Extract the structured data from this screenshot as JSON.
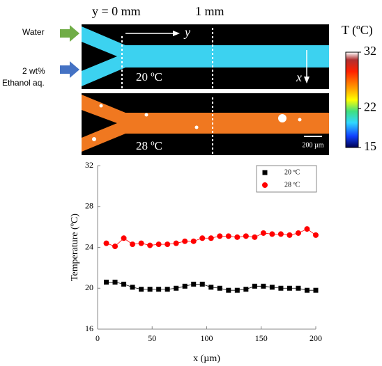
{
  "figure": {
    "position_labels": [
      "y = 0 mm",
      "1 mm"
    ],
    "inlet_labels": [
      "Water",
      "2 wt%",
      "Ethanol aq."
    ],
    "axis_arrows": [
      "y",
      "x"
    ],
    "panel_labels": [
      "20 ºC",
      "28 ºC"
    ],
    "scale_bar": "200 µm"
  },
  "colorbar": {
    "title": "T (ºC)",
    "lim": [
      15,
      32
    ],
    "ticks": [
      15,
      22,
      32
    ]
  },
  "chart_data": {
    "type": "line",
    "xlabel": "x (µm)",
    "ylabel": "Temperature (ºC)",
    "x": [
      8,
      16,
      24,
      32,
      40,
      48,
      56,
      64,
      72,
      80,
      88,
      96,
      104,
      112,
      120,
      128,
      136,
      144,
      152,
      160,
      168,
      176,
      184,
      192,
      200
    ],
    "series": [
      {
        "name": "20 ºC",
        "color": "#000000",
        "marker": "square",
        "values": [
          20.6,
          20.6,
          20.4,
          20.1,
          19.9,
          19.9,
          19.9,
          19.9,
          20.0,
          20.2,
          20.4,
          20.4,
          20.1,
          20.0,
          19.8,
          19.8,
          19.9,
          20.2,
          20.2,
          20.1,
          20.0,
          20.0,
          20.0,
          19.8,
          19.8
        ]
      },
      {
        "name": "28 ºC",
        "color": "#ff0000",
        "marker": "circle",
        "values": [
          24.4,
          24.1,
          24.9,
          24.3,
          24.4,
          24.2,
          24.3,
          24.3,
          24.4,
          24.6,
          24.6,
          24.9,
          24.9,
          25.1,
          25.1,
          25.0,
          25.1,
          25.0,
          25.4,
          25.3,
          25.3,
          25.2,
          25.4,
          25.8,
          25.2
        ]
      }
    ],
    "xlim": [
      0,
      200
    ],
    "xticks": [
      0,
      50,
      100,
      150,
      200
    ],
    "ylim": [
      16,
      32
    ],
    "yticks": [
      16,
      20,
      24,
      28,
      32
    ],
    "legend": "upper right"
  }
}
